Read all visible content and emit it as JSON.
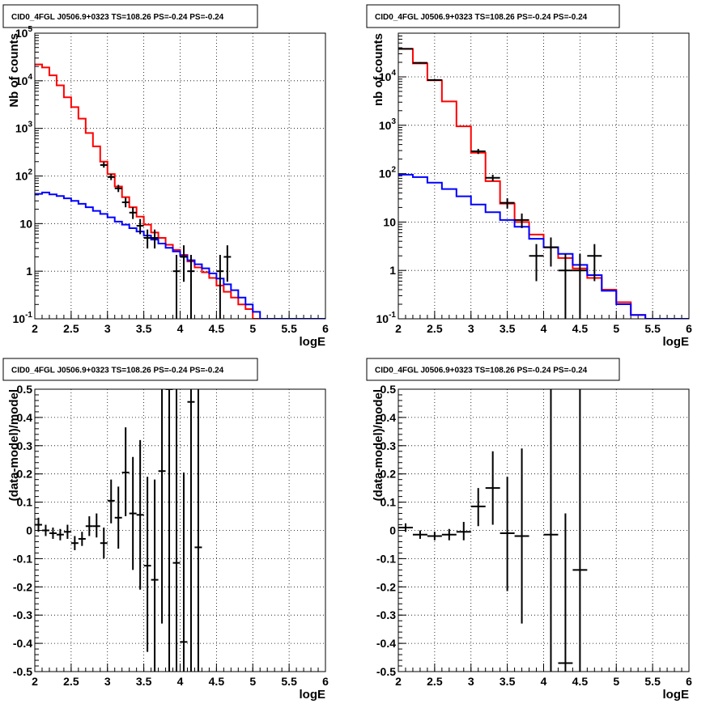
{
  "chart_data": [
    {
      "type": "line",
      "title": "CID0_4FGL J0506.9+0323 TS=108.26 PS=-0.24 PS=-0.24",
      "xlabel": "logE",
      "ylabel": "Nb of counts",
      "xlim": [
        2,
        6
      ],
      "ylim": [
        0.1,
        100000
      ],
      "yscale": "log",
      "grid": true,
      "x_ticks": [
        "2",
        "2.5",
        "3",
        "3.5",
        "4",
        "4.5",
        "5",
        "5.5",
        "6"
      ],
      "y_ticks": [
        "10^-1",
        "1",
        "10",
        "10^2",
        "10^3",
        "10^4",
        "10^5"
      ],
      "series": [
        {
          "kind": "step",
          "color": "#ff0000",
          "bin_width": 0.1,
          "bin_start": 2.0,
          "values": [
            22000,
            19000,
            13000,
            8000,
            4500,
            2800,
            1600,
            800,
            420,
            200,
            110,
            60,
            36,
            22,
            14,
            9.5,
            6.5,
            5,
            3.6,
            2.8,
            2.2,
            1.6,
            1.2,
            0.95,
            0.72,
            0.5,
            0.37,
            0.28,
            0.2,
            0.16,
            0.1,
            0.1,
            0.1,
            0.1,
            0.1,
            0.1,
            0.1,
            0.1,
            0.1,
            0.1
          ]
        },
        {
          "kind": "step",
          "color": "#0000ff",
          "bin_width": 0.1,
          "bin_start": 2.0,
          "values": [
            42,
            45,
            41,
            38,
            34,
            30,
            26,
            22,
            18.5,
            16,
            13.5,
            11,
            9.5,
            8,
            6.8,
            5.6,
            4.6,
            3.8,
            3.1,
            2.6,
            2.1,
            1.7,
            1.4,
            1.15,
            0.9,
            0.7,
            0.53,
            0.4,
            0.28,
            0.2,
            0.14,
            0.1,
            0.1,
            0.1,
            0.1,
            0.1,
            0.1,
            0.1,
            0.1,
            0.1
          ]
        },
        {
          "kind": "errorbars",
          "color": "#000000",
          "xerr": 0.05,
          "points": [
            {
              "x": 2.95,
              "y": 170,
              "lo": 150,
              "hi": 195
            },
            {
              "x": 3.05,
              "y": 95,
              "lo": 82,
              "hi": 110
            },
            {
              "x": 3.15,
              "y": 55,
              "lo": 46,
              "hi": 65
            },
            {
              "x": 3.25,
              "y": 28,
              "lo": 22,
              "hi": 35
            },
            {
              "x": 3.35,
              "y": 17,
              "lo": 12.5,
              "hi": 22
            },
            {
              "x": 3.45,
              "y": 9,
              "lo": 6,
              "hi": 12.5
            },
            {
              "x": 3.55,
              "y": 5,
              "lo": 3,
              "hi": 7.5
            },
            {
              "x": 3.65,
              "y": 5,
              "lo": 3,
              "hi": 7.5
            },
            {
              "x": 3.95,
              "y": 1,
              "lo": 0.1,
              "hi": 2.2
            },
            {
              "x": 4.05,
              "y": 2,
              "lo": 0.6,
              "hi": 3.5
            },
            {
              "x": 4.15,
              "y": 1,
              "lo": 0.1,
              "hi": 2.2
            },
            {
              "x": 4.55,
              "y": 1,
              "lo": 0.1,
              "hi": 2.2
            },
            {
              "x": 4.65,
              "y": 2,
              "lo": 0.6,
              "hi": 3.5
            }
          ]
        }
      ]
    },
    {
      "type": "line",
      "title": "CID0_4FGL J0506.9+0323 TS=108.26 PS=-0.24 PS=-0.24",
      "xlabel": "logE",
      "ylabel": "nb of counts",
      "xlim": [
        2,
        6
      ],
      "ylim": [
        0.1,
        80000
      ],
      "yscale": "log",
      "grid": true,
      "x_ticks": [
        "2",
        "2.5",
        "3",
        "3.5",
        "4",
        "4.5",
        "5",
        "5.5",
        "6"
      ],
      "y_ticks": [
        "10^-1",
        "1",
        "10",
        "10^2",
        "10^3",
        "10^4"
      ],
      "series": [
        {
          "kind": "step",
          "color": "#ff0000",
          "bin_width": 0.2,
          "bin_start": 2.0,
          "values": [
            38000,
            19000,
            8500,
            3100,
            950,
            270,
            70,
            24,
            10,
            5.5,
            3,
            1.8,
            1.1,
            0.7,
            0.4,
            0.22,
            0.12,
            0.1,
            0.1,
            0.1
          ]
        },
        {
          "kind": "step",
          "color": "#0000ff",
          "bin_width": 0.2,
          "bin_start": 2.0,
          "values": [
            95,
            85,
            65,
            48,
            34,
            23,
            16,
            11,
            8,
            4.5,
            3,
            2.2,
            1.3,
            0.8,
            0.38,
            0.2,
            0.12,
            0.1,
            0.1,
            0.1
          ]
        },
        {
          "kind": "errorbars",
          "color": "#000000",
          "xerr": 0.1,
          "points": [
            {
              "x": 2.1,
              "y": 38000,
              "lo": 37000,
              "hi": 39000
            },
            {
              "x": 2.3,
              "y": 19500,
              "lo": 18800,
              "hi": 20200
            },
            {
              "x": 2.5,
              "y": 8600,
              "lo": 8300,
              "hi": 8900
            },
            {
              "x": 3.1,
              "y": 290,
              "lo": 255,
              "hi": 325
            },
            {
              "x": 3.3,
              "y": 82,
              "lo": 70,
              "hi": 95
            },
            {
              "x": 3.5,
              "y": 25,
              "lo": 19,
              "hi": 31
            },
            {
              "x": 3.7,
              "y": 11,
              "lo": 7.5,
              "hi": 15
            },
            {
              "x": 3.9,
              "y": 2,
              "lo": 0.6,
              "hi": 3.5
            },
            {
              "x": 4.1,
              "y": 3,
              "lo": 1.2,
              "hi": 4.8
            },
            {
              "x": 4.3,
              "y": 1,
              "lo": 0.1,
              "hi": 2.2
            },
            {
              "x": 4.5,
              "y": 1,
              "lo": 0.1,
              "hi": 2.2
            },
            {
              "x": 4.7,
              "y": 2,
              "lo": 0.6,
              "hi": 3.5
            }
          ]
        }
      ]
    },
    {
      "type": "scatter",
      "title": "CID0_4FGL J0506.9+0323 TS=108.26 PS=-0.24 PS=-0.24",
      "xlabel": "logE",
      "ylabel": "(data-model)/model",
      "xlim": [
        2,
        6
      ],
      "ylim": [
        -0.5,
        0.5
      ],
      "grid": true,
      "x_ticks": [
        "2",
        "2.5",
        "3",
        "3.5",
        "4",
        "4.5",
        "5",
        "5.5",
        "6"
      ],
      "y_ticks": [
        "-0.5",
        "-0.4",
        "-0.3",
        "-0.2",
        "-0.1",
        "0",
        "0.1",
        "0.2",
        "0.3",
        "0.4",
        "0.5"
      ],
      "series": [
        {
          "kind": "errorbars",
          "color": "#000000",
          "xerr": 0.05,
          "points": [
            {
              "x": 2.05,
              "y": 0.02,
              "lo": -0.005,
              "hi": 0.045
            },
            {
              "x": 2.15,
              "y": 0.0,
              "lo": -0.02,
              "hi": 0.02
            },
            {
              "x": 2.25,
              "y": -0.01,
              "lo": -0.03,
              "hi": 0.01
            },
            {
              "x": 2.35,
              "y": -0.015,
              "lo": -0.035,
              "hi": 0.005
            },
            {
              "x": 2.45,
              "y": -0.005,
              "lo": -0.03,
              "hi": 0.02
            },
            {
              "x": 2.55,
              "y": -0.045,
              "lo": -0.07,
              "hi": -0.02
            },
            {
              "x": 2.65,
              "y": -0.03,
              "lo": -0.055,
              "hi": -0.005
            },
            {
              "x": 2.75,
              "y": 0.015,
              "lo": -0.02,
              "hi": 0.05
            },
            {
              "x": 2.85,
              "y": 0.015,
              "lo": -0.025,
              "hi": 0.06
            },
            {
              "x": 2.95,
              "y": -0.045,
              "lo": -0.1,
              "hi": 0.01
            },
            {
              "x": 3.05,
              "y": 0.105,
              "lo": 0.025,
              "hi": 0.18
            },
            {
              "x": 3.15,
              "y": 0.045,
              "lo": -0.065,
              "hi": 0.155
            },
            {
              "x": 3.25,
              "y": 0.205,
              "lo": 0.05,
              "hi": 0.365
            },
            {
              "x": 3.35,
              "y": 0.06,
              "lo": -0.14,
              "hi": 0.26
            },
            {
              "x": 3.45,
              "y": 0.055,
              "lo": -0.21,
              "hi": 0.32
            },
            {
              "x": 3.55,
              "y": -0.125,
              "lo": -0.43,
              "hi": 0.19
            },
            {
              "x": 3.65,
              "y": -0.175,
              "lo": -0.5,
              "hi": 0.18
            },
            {
              "x": 3.75,
              "y": 0.21,
              "lo": -0.33,
              "hi": 0.5
            },
            {
              "x": 3.85,
              "y": 0.5,
              "lo": -0.5,
              "hi": 0.5
            },
            {
              "x": 3.95,
              "y": -0.115,
              "lo": -0.5,
              "hi": 0.5
            },
            {
              "x": 4.05,
              "y": -0.395,
              "lo": -0.5,
              "hi": 0.205
            },
            {
              "x": 4.15,
              "y": 0.455,
              "lo": -0.5,
              "hi": 0.5
            },
            {
              "x": 4.25,
              "y": -0.06,
              "lo": -0.5,
              "hi": 0.5
            }
          ]
        }
      ]
    },
    {
      "type": "scatter",
      "title": "CID0_4FGL J0506.9+0323 TS=108.26 PS=-0.24 PS=-0.24",
      "xlabel": "logE",
      "ylabel": "(data-model)/model",
      "xlim": [
        2,
        6
      ],
      "ylim": [
        -0.5,
        0.5
      ],
      "grid": true,
      "x_ticks": [
        "2",
        "2.5",
        "3",
        "3.5",
        "4",
        "4.5",
        "5",
        "5.5",
        "6"
      ],
      "y_ticks": [
        "-0.5",
        "-0.4",
        "-0.3",
        "-0.2",
        "-0.1",
        "0",
        "0.1",
        "0.2",
        "0.3",
        "0.4",
        "0.5"
      ],
      "series": [
        {
          "kind": "errorbars",
          "color": "#000000",
          "xerr": 0.1,
          "points": [
            {
              "x": 2.1,
              "y": 0.01,
              "lo": -0.005,
              "hi": 0.025
            },
            {
              "x": 2.3,
              "y": -0.015,
              "lo": -0.03,
              "hi": 0.0
            },
            {
              "x": 2.5,
              "y": -0.02,
              "lo": -0.035,
              "hi": -0.005
            },
            {
              "x": 2.7,
              "y": -0.015,
              "lo": -0.035,
              "hi": 0.005
            },
            {
              "x": 2.9,
              "y": -0.005,
              "lo": -0.035,
              "hi": 0.03
            },
            {
              "x": 3.1,
              "y": 0.085,
              "lo": 0.015,
              "hi": 0.15
            },
            {
              "x": 3.3,
              "y": 0.15,
              "lo": 0.02,
              "hi": 0.28
            },
            {
              "x": 3.5,
              "y": -0.01,
              "lo": -0.215,
              "hi": 0.19
            },
            {
              "x": 3.7,
              "y": -0.02,
              "lo": -0.33,
              "hi": 0.29
            },
            {
              "x": 4.1,
              "y": -0.015,
              "lo": -0.5,
              "hi": 0.5
            },
            {
              "x": 4.3,
              "y": -0.47,
              "lo": -0.5,
              "hi": 0.06
            },
            {
              "x": 4.5,
              "y": -0.14,
              "lo": -0.5,
              "hi": 0.5
            }
          ]
        }
      ]
    }
  ]
}
